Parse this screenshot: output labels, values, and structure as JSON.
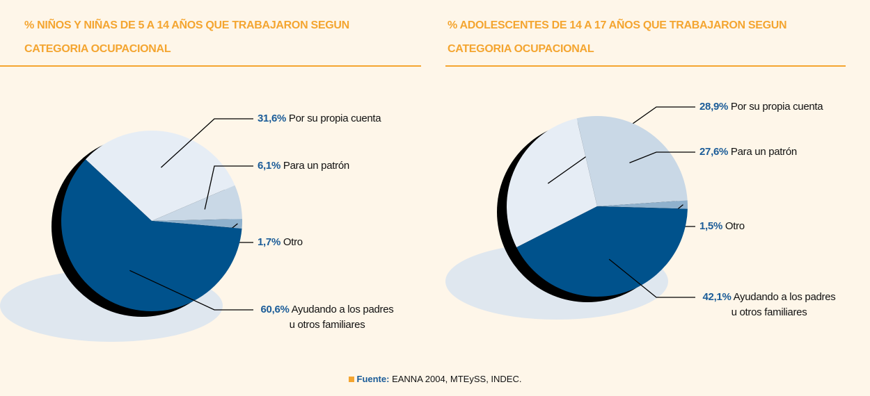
{
  "chart_data": [
    {
      "type": "pie",
      "title": "% NIÑOS Y NIÑAS DE 5 A 14 AÑOS QUE TRABAJARON SEGUN CATEGORIA OCUPACIONAL",
      "categories": [
        "Por su propia cuenta",
        "Para un patrón",
        "Otro",
        "Ayudando a los padres u otros familiares"
      ],
      "values": [
        31.6,
        6.1,
        1.7,
        60.6
      ],
      "value_labels": [
        "31,6%",
        "6,1%",
        "1,7%",
        "60,6%"
      ],
      "colors": [
        "#e6edf5",
        "#c9d8e6",
        "#8fb1cd",
        "#00528c"
      ]
    },
    {
      "type": "pie",
      "title": "% ADOLESCENTES DE 14 A 17 AÑOS QUE TRABAJARON SEGUN CATEGORIA OCUPACIONAL",
      "categories": [
        "Por su propia cuenta",
        "Para un patrón",
        "Otro",
        "Ayudando a los padres u otros familiares"
      ],
      "values": [
        28.9,
        27.6,
        1.5,
        42.1
      ],
      "value_labels": [
        "28,9%",
        "27,6%",
        "1,5%",
        "42,1%"
      ],
      "colors": [
        "#e6edf5",
        "#c9d8e6",
        "#8fb1cd",
        "#00528c"
      ]
    }
  ],
  "footer": {
    "label": "Fuente:",
    "text": "EANNA 2004, MTEySS, INDEC."
  }
}
